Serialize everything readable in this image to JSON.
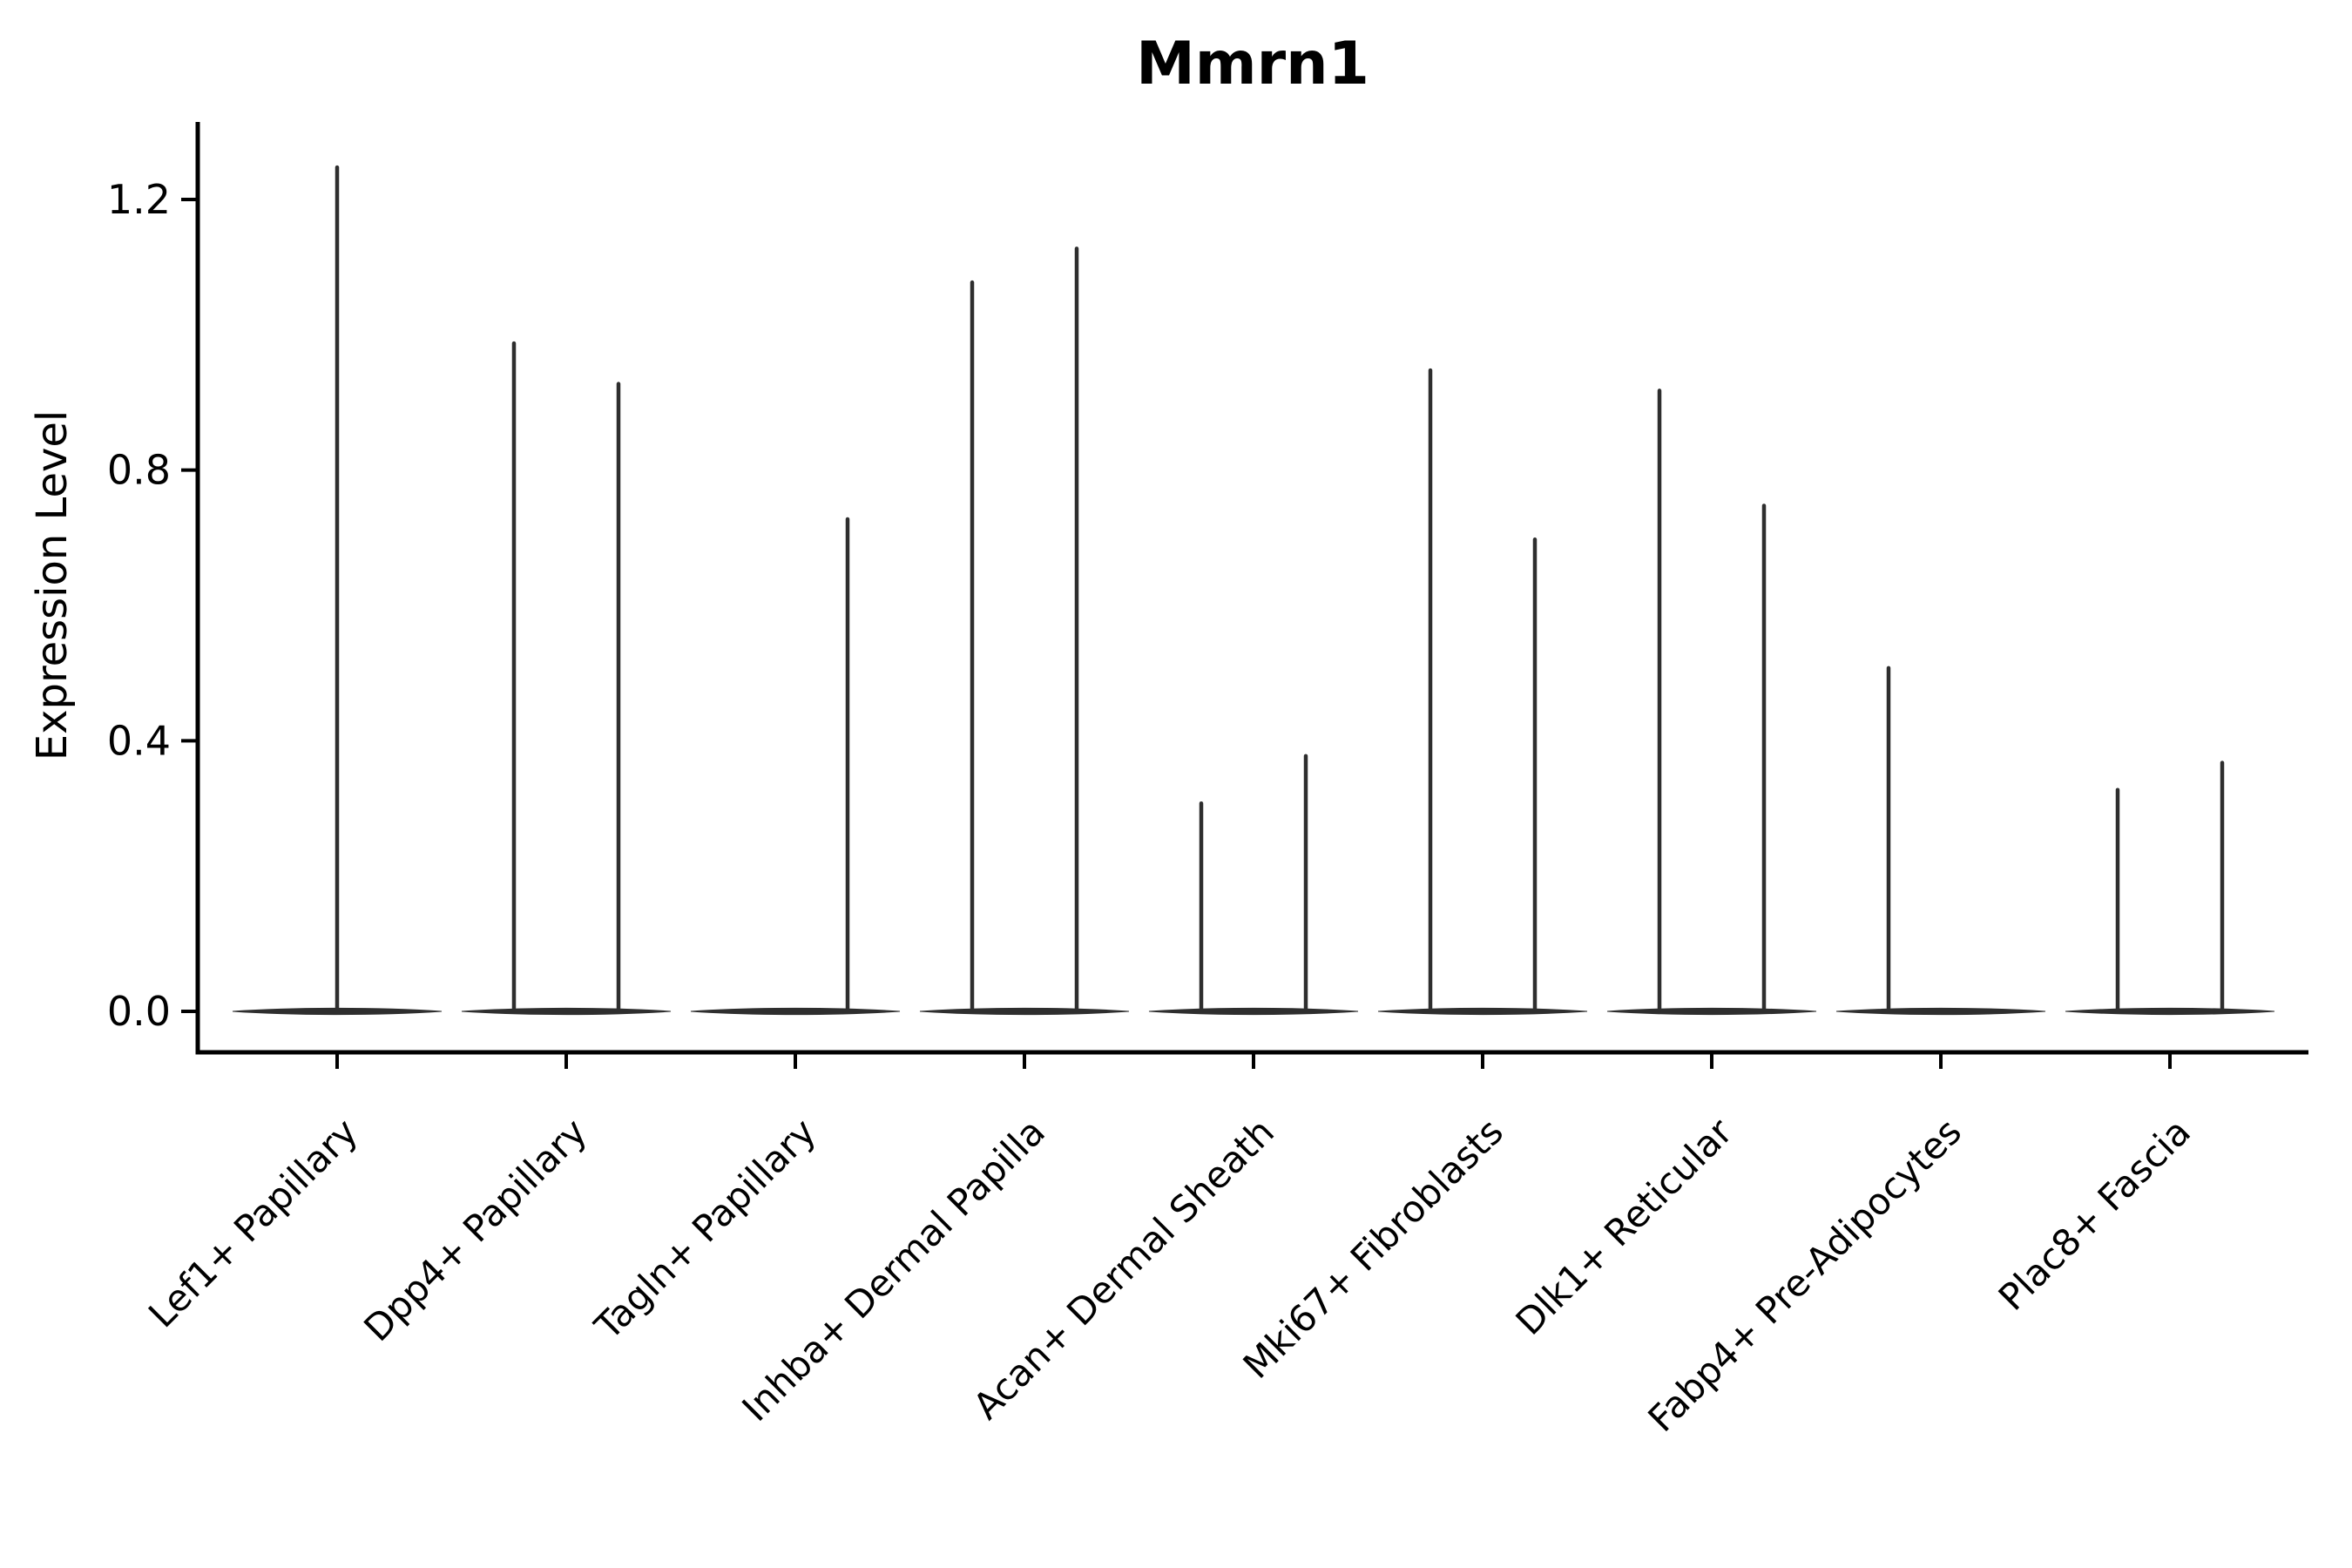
{
  "figure": {
    "background_color": "#ffffff",
    "axis_color": "#000000",
    "violin_color": "#2e2e2e"
  },
  "chart_data": {
    "type": "violin",
    "title": "Mmrn1",
    "xlabel": "",
    "ylabel": "Expression Level",
    "ylim": [
      -0.06,
      1.32
    ],
    "grid": false,
    "legend": "none",
    "x_tick_rotation_deg": 45,
    "yticks": [
      {
        "label": "0.0",
        "value": 0.0
      },
      {
        "label": "0.4",
        "value": 0.4
      },
      {
        "label": "0.8",
        "value": 0.8
      },
      {
        "label": "1.2",
        "value": 1.2
      }
    ],
    "description": "Violin plot of Mmrn1 expression per fibroblast subtype; expression mass is concentrated at 0 (flat wide bases) with thin spikes reaching each group's maximum expression. Most categories contain two dodged violins (left/right groups).",
    "categories": [
      {
        "label": "Lef1+ Papillary",
        "violins": [
          {
            "group": "all",
            "max": 1.25
          }
        ]
      },
      {
        "label": "Dpp4+ Papillary",
        "violins": [
          {
            "group": "left",
            "max": 0.99
          },
          {
            "group": "right",
            "max": 0.93
          }
        ]
      },
      {
        "label": "Tagln+ Papillary",
        "violins": [
          {
            "group": "left",
            "max": 0.0
          },
          {
            "group": "right",
            "max": 0.73
          }
        ]
      },
      {
        "label": "Inhba+ Dermal Papilla",
        "violins": [
          {
            "group": "left",
            "max": 1.08
          },
          {
            "group": "right",
            "max": 1.13
          }
        ]
      },
      {
        "label": "Acan+ Dermal Sheath",
        "violins": [
          {
            "group": "left",
            "max": 0.31
          },
          {
            "group": "right",
            "max": 0.38
          }
        ]
      },
      {
        "label": "Mki67+ Fibroblasts",
        "violins": [
          {
            "group": "left",
            "max": 0.95
          },
          {
            "group": "right",
            "max": 0.7
          }
        ]
      },
      {
        "label": "Dlk1+ Reticular",
        "violins": [
          {
            "group": "left",
            "max": 0.92
          },
          {
            "group": "right",
            "max": 0.75
          }
        ]
      },
      {
        "label": "Fabp4+ Pre-Adipocytes",
        "violins": [
          {
            "group": "left",
            "max": 0.51
          },
          {
            "group": "right",
            "max": 0.0
          }
        ]
      },
      {
        "label": "Plac8+ Fascia",
        "violins": [
          {
            "group": "left",
            "max": 0.33
          },
          {
            "group": "right",
            "max": 0.37
          }
        ]
      }
    ]
  }
}
